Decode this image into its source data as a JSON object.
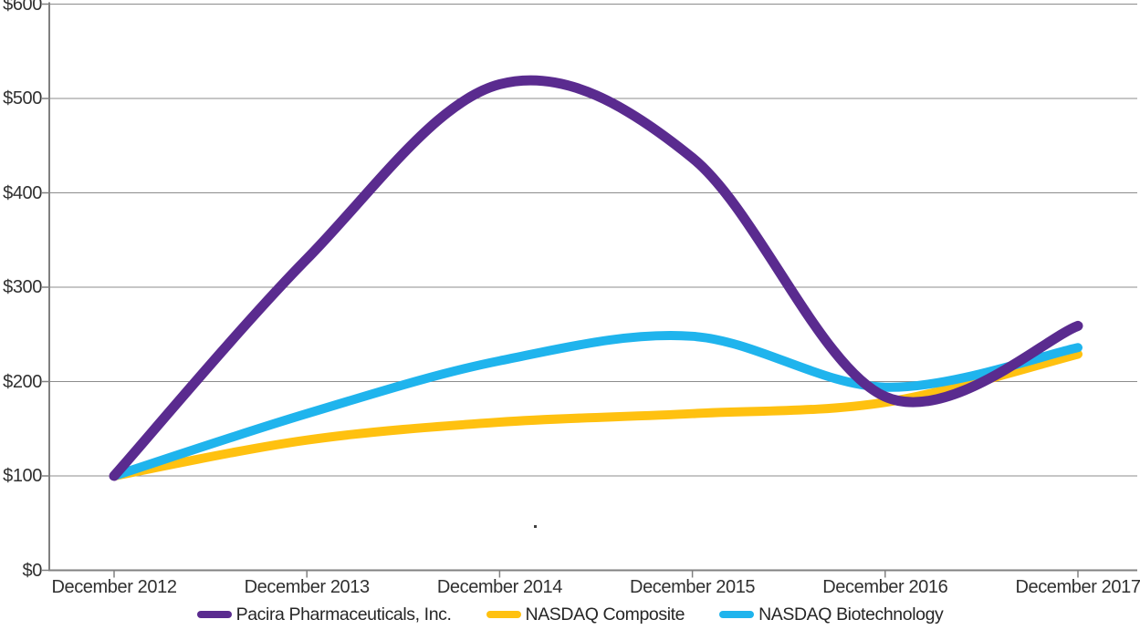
{
  "chart_data": {
    "type": "line",
    "title": "",
    "categories": [
      "December 2012",
      "December 2013",
      "December 2014",
      "December 2015",
      "December 2016",
      "December 2017"
    ],
    "series": [
      {
        "name": "Pacira Pharmaceuticals, Inc.",
        "color": "#5A2B8F",
        "values": [
          100,
          330,
          515,
          437,
          184,
          259
        ]
      },
      {
        "name": "NASDAQ Composite",
        "color": "#FFC110",
        "values": [
          100,
          138,
          157,
          166,
          178,
          229
        ]
      },
      {
        "name": "NASDAQ Biotechnology",
        "color": "#1FB4ED",
        "values": [
          100,
          166,
          222,
          248,
          194,
          236
        ]
      }
    ],
    "y_ticks": [
      "$600",
      "$500",
      "$400",
      "$300",
      "$200",
      "$100",
      "$0"
    ],
    "ylim": [
      0,
      600
    ],
    "y_tick_step": 100,
    "currency_prefix": "$",
    "xlabel": "",
    "ylabel": "",
    "grid": "horizontal",
    "gridline_color": "#8C8C8C",
    "axis_color": "#808080",
    "label_color": "#303030",
    "legend_position": "bottom",
    "line_style": "smoothed",
    "draw_order": [
      "NASDAQ Composite",
      "NASDAQ Biotechnology",
      "Pacira Pharmaceuticals, Inc."
    ]
  },
  "artifacts": {
    "stray_dot": "."
  }
}
